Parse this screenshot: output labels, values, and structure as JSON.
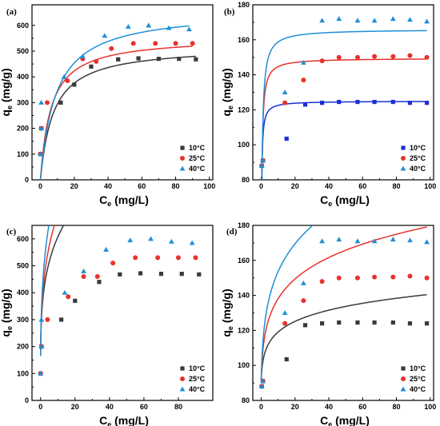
{
  "chart_data": [
    {
      "type": "scatter",
      "panel_label": "(a)",
      "xlabel": "Ce (mg/L)",
      "ylabel": "qe (mg/g)",
      "xlim": [
        -5,
        102
      ],
      "ylim": [
        0,
        680
      ],
      "xticks": [
        0,
        20,
        40,
        60,
        80,
        100
      ],
      "yticks": [
        0,
        100,
        200,
        300,
        400,
        500,
        600
      ],
      "legend_position": "bottom-right",
      "fit_model": "langmuir",
      "series": [
        {
          "name": "10°C",
          "color": "#3a3a3a",
          "marker": "square",
          "x": [
            0,
            0.5,
            12,
            20,
            30,
            46,
            58,
            70,
            82,
            92
          ],
          "y": [
            100,
            200,
            300,
            370,
            440,
            468,
            472,
            470,
            470,
            468
          ],
          "fit": {
            "qmax": 520,
            "K": 0.13
          }
        },
        {
          "name": "25°C",
          "color": "#e8322b",
          "marker": "circle",
          "x": [
            0,
            0.5,
            4,
            16,
            25,
            33,
            42,
            55,
            68,
            80,
            90
          ],
          "y": [
            100,
            200,
            300,
            385,
            470,
            460,
            510,
            530,
            530,
            530,
            530
          ],
          "fit": {
            "qmax": 555,
            "K": 0.16
          }
        },
        {
          "name": "40°C",
          "color": "#1e8fd6",
          "marker": "triangle",
          "x": [
            0,
            0.5,
            0.5,
            14,
            25,
            38,
            52,
            64,
            76,
            88
          ],
          "y": [
            100,
            200,
            300,
            400,
            480,
            560,
            595,
            600,
            590,
            585
          ],
          "fit": {
            "qmax": 660,
            "K": 0.11
          }
        }
      ]
    },
    {
      "type": "scatter",
      "panel_label": "(b)",
      "xlabel": "Ce (mg/L)",
      "ylabel": "qe (mg/g)",
      "xlim": [
        -5,
        102
      ],
      "ylim": [
        80,
        180
      ],
      "xticks": [
        0,
        20,
        40,
        60,
        80,
        100
      ],
      "yticks": [
        80,
        100,
        120,
        140,
        160,
        180
      ],
      "legend_position": "bottom-right",
      "fit_model": "langmuir",
      "series": [
        {
          "name": "10°C",
          "color": "#1a2fd8",
          "marker": "square",
          "x": [
            0.3,
            1,
            15,
            26,
            36,
            46,
            57,
            67,
            78,
            88,
            98
          ],
          "y": [
            88,
            91,
            103.5,
            123,
            124,
            124.5,
            124.5,
            124.5,
            124.5,
            124,
            124
          ],
          "fit": {
            "qmax": 125,
            "K": 5
          }
        },
        {
          "name": "25°C",
          "color": "#e8322b",
          "marker": "circle",
          "x": [
            0.3,
            1,
            14,
            25,
            36,
            46,
            57,
            67,
            78,
            88,
            98
          ],
          "y": [
            88,
            91,
            124,
            137,
            148,
            150,
            150,
            150.5,
            150.5,
            151,
            150
          ],
          "fit": {
            "qmax": 149.5,
            "K": 3
          }
        },
        {
          "name": "40°C",
          "color": "#1e8fd6",
          "marker": "triangle",
          "x": [
            0.3,
            1,
            14,
            25,
            36,
            46,
            57,
            67,
            78,
            88,
            98
          ],
          "y": [
            88,
            91,
            130,
            147,
            171,
            172,
            171,
            171,
            172,
            171.5,
            170.5
          ],
          "fit": {
            "qmax": 166,
            "K": 2.2
          }
        }
      ]
    },
    {
      "type": "scatter",
      "panel_label": "(c)",
      "xlabel": "Ce (mg/L)",
      "ylabel": "qe (mg/g)",
      "xlim": [
        -5,
        100
      ],
      "ylim": [
        0,
        650
      ],
      "xticks": [
        0,
        20,
        40,
        60,
        80
      ],
      "yticks": [
        0,
        100,
        200,
        300,
        400,
        500,
        600
      ],
      "legend_position": "bottom-right",
      "fit_model": "freundlich",
      "series": [
        {
          "name": "10°C",
          "color": "#3a3a3a",
          "marker": "square",
          "x": [
            0,
            0.5,
            12,
            20,
            34,
            46,
            58,
            70,
            82,
            92
          ],
          "y": [
            100,
            200,
            300,
            370,
            440,
            468,
            472,
            470,
            470,
            468
          ],
          "fit": {
            "a": 170,
            "b": 0.24,
            "x0": 0.05
          }
        },
        {
          "name": "25°C",
          "color": "#e8322b",
          "marker": "circle",
          "x": [
            0,
            0.5,
            4,
            16,
            25,
            33,
            42,
            55,
            68,
            80,
            90
          ],
          "y": [
            100,
            200,
            300,
            385,
            460,
            460,
            510,
            530,
            530,
            530,
            530
          ],
          "fit": {
            "a": 165,
            "b": 0.27,
            "x0": 0.05
          }
        },
        {
          "name": "40°C",
          "color": "#1e8fd6",
          "marker": "triangle",
          "x": [
            0,
            0.5,
            0.5,
            14,
            25,
            38,
            52,
            64,
            76,
            88
          ],
          "y": [
            100,
            200,
            300,
            400,
            480,
            560,
            595,
            600,
            590,
            585
          ],
          "fit": {
            "a": 165,
            "b": 0.3,
            "x0": 0.05
          }
        }
      ]
    },
    {
      "type": "scatter",
      "panel_label": "(d)",
      "xlabel": "Ce (mg/L)",
      "ylabel": "qe (mg/g)",
      "xlim": [
        -5,
        102
      ],
      "ylim": [
        80,
        180
      ],
      "xticks": [
        0,
        20,
        40,
        60,
        80,
        100
      ],
      "yticks": [
        80,
        100,
        120,
        140,
        160,
        180
      ],
      "legend_position": "bottom-right",
      "fit_model": "freundlich",
      "series": [
        {
          "name": "10°C",
          "color": "#3a3a3a",
          "marker": "square",
          "x": [
            0.3,
            1,
            15,
            26,
            36,
            46,
            57,
            67,
            78,
            88,
            98
          ],
          "y": [
            88,
            91,
            103.5,
            123,
            124,
            124.5,
            124.5,
            124.5,
            124.5,
            124,
            124
          ],
          "fit": {
            "a": 92,
            "b": 0.073,
            "x0": 0.3
          }
        },
        {
          "name": "25°C",
          "color": "#e8322b",
          "marker": "circle",
          "x": [
            0.3,
            1,
            14,
            25,
            36,
            46,
            57,
            67,
            78,
            88,
            98
          ],
          "y": [
            88,
            91,
            124,
            137,
            148,
            150,
            150,
            150.5,
            150.5,
            151,
            150
          ],
          "fit": {
            "a": 92,
            "b": 0.115,
            "x0": 0.3
          }
        },
        {
          "name": "40°C",
          "color": "#1e8fd6",
          "marker": "triangle",
          "x": [
            0.3,
            1,
            14,
            25,
            36,
            46,
            57,
            67,
            78,
            88,
            98
          ],
          "y": [
            88,
            91,
            130,
            147,
            171,
            172,
            171,
            171,
            172,
            171.5,
            170.5
          ],
          "fit": {
            "a": 92,
            "b": 0.145,
            "x0": 0.3
          }
        }
      ]
    }
  ]
}
